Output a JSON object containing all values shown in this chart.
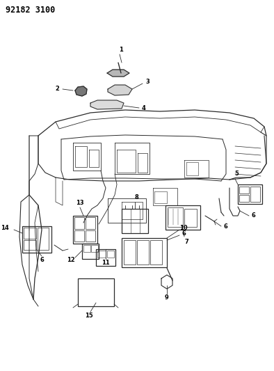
{
  "title": "92182 3100",
  "bg_color": "#ffffff",
  "fig_width": 3.94,
  "fig_height": 5.33,
  "dpi": 100,
  "line_color": "#2a2a2a",
  "label_fontsize": 6.0,
  "title_fontsize": 8.5
}
